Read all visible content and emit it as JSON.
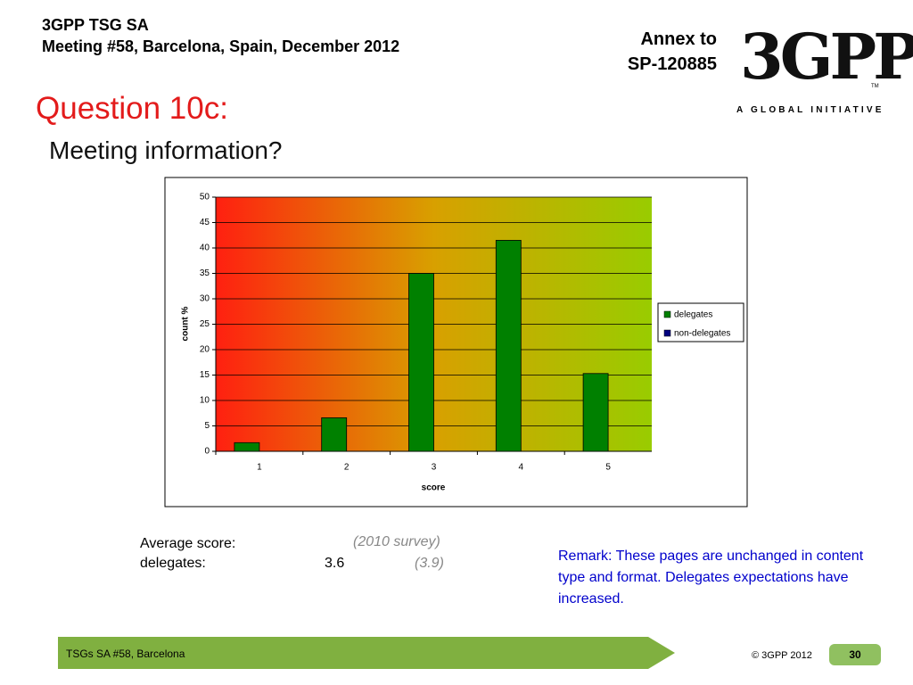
{
  "header": {
    "org": "3GPP TSG SA",
    "meeting": "Meeting #58, Barcelona, Spain, December 2012",
    "annex": "Annex to",
    "doc": "SP-120885",
    "logo": "3GPP",
    "logo_tagline": "A GLOBAL INITIATIVE",
    "tm": "TM"
  },
  "title": "Question 10c:",
  "subtitle": "Meeting information?",
  "chart_data": {
    "type": "bar",
    "categories": [
      "1",
      "2",
      "3",
      "4",
      "5"
    ],
    "series": [
      {
        "name": "delegates",
        "color": "#008000",
        "values": [
          1.7,
          6.6,
          35,
          41.5,
          15.3
        ]
      },
      {
        "name": "non-delegates",
        "color": "#000080",
        "values": [
          null,
          null,
          null,
          null,
          null
        ]
      }
    ],
    "xlabel": "score",
    "ylabel": "count %",
    "ylim": [
      0,
      50
    ],
    "yticks": [
      0,
      5,
      10,
      15,
      20,
      25,
      30,
      35,
      40,
      45,
      50
    ],
    "grid": true,
    "legend": "right"
  },
  "stats": {
    "label": "Average score:",
    "survey": "(2010 survey)",
    "group": "delegates:",
    "score": "3.6",
    "previous": "(3.9)"
  },
  "remark": "Remark: These pages are unchanged in content type and format. Delegates expectations have increased.",
  "footer": {
    "left": "TSGs SA #58, Barcelona",
    "copyright": "© 3GPP 2012",
    "page": "30"
  }
}
